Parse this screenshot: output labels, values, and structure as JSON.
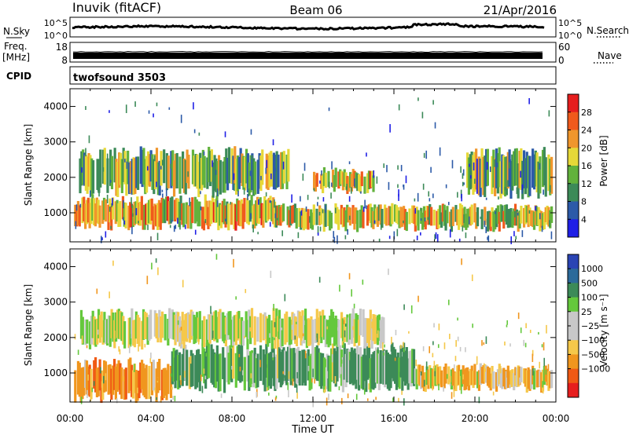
{
  "header": {
    "station": "Inuvik (fitACF)",
    "beam": "Beam 06",
    "date": "21/Apr/2016"
  },
  "strip": {
    "nsky_label": "N.Sky",
    "nsearch_label": "N.Search",
    "left_ticks": [
      "10^5",
      "10^0"
    ],
    "right_ticks": [
      "10^5",
      "10^0"
    ],
    "freq_label": "Freq.",
    "freq_unit": "[MHz]",
    "freq_ticks": [
      "18",
      "8"
    ],
    "nave_label": "Nave",
    "nave_ticks": [
      "60",
      "0"
    ],
    "cpid_label": "CPID",
    "cpid_value": "twofsound 3503"
  },
  "colors": {
    "power": [
      "#1f1fe6",
      "#2c5aa8",
      "#3c8a58",
      "#62b23c",
      "#e6d838",
      "#f0962c",
      "#f05a1c",
      "#e61e1e"
    ],
    "velocity": [
      "#e61e1e",
      "#f05a14",
      "#f0961e",
      "#f5c84a",
      "#c8c8c8",
      "#c8c8c8",
      "#64c83c",
      "#3c8a58",
      "#2c6a9a",
      "#2a44b4"
    ]
  },
  "chart_data": [
    {
      "type": "heatmap",
      "quantity": "Power",
      "ylabel": "Slant Range [km]",
      "xlabel": "Time UT",
      "ylim": [
        180,
        4500
      ],
      "xlim": [
        0,
        24
      ],
      "y_ticks": [
        "1000",
        "2000",
        "3000",
        "4000"
      ],
      "x_ticks": [
        "00:00",
        "04:00",
        "08:00",
        "12:00",
        "16:00",
        "20:00",
        "00:00"
      ],
      "colorbar": {
        "label": "Power [dB]",
        "ticks": [
          "4",
          "8",
          "12",
          "16",
          "20",
          "24",
          "28"
        ]
      },
      "echo_bands_approx": [
        {
          "t_start": 0.2,
          "t_end": 10.2,
          "range_low": 600,
          "range_high": 1400,
          "power_db": 20
        },
        {
          "t_start": 10.2,
          "t_end": 23.8,
          "range_low": 550,
          "range_high": 1200,
          "power_db": 18
        },
        {
          "t_start": 0.3,
          "t_end": 10.8,
          "range_low": 1600,
          "range_high": 2700,
          "power_db": 14
        },
        {
          "t_start": 12.0,
          "t_end": 15.0,
          "range_low": 1600,
          "range_high": 2200,
          "power_db": 20
        },
        {
          "t_start": 19.5,
          "t_end": 23.8,
          "range_low": 1500,
          "range_high": 2700,
          "power_db": 12
        }
      ]
    },
    {
      "type": "heatmap",
      "quantity": "Velocity",
      "ylabel": "Slant Range [km]",
      "xlabel": "Time UT",
      "ylim": [
        180,
        4500
      ],
      "xlim": [
        0,
        24
      ],
      "y_ticks": [
        "1000",
        "2000",
        "3000",
        "4000"
      ],
      "x_ticks": [
        "00:00",
        "04:00",
        "08:00",
        "12:00",
        "16:00",
        "20:00",
        "00:00"
      ],
      "colorbar": {
        "label": "Velocity [m s⁻¹]",
        "ticks": [
          "1000",
          "500",
          "100",
          "25",
          "−25",
          "−100",
          "−500",
          "−1000"
        ]
      },
      "echo_bands_approx": [
        {
          "t_start": 0.2,
          "t_end": 5.0,
          "range_low": 300,
          "range_high": 1300,
          "velocity": -300
        },
        {
          "t_start": 5.0,
          "t_end": 17.0,
          "range_low": 600,
          "range_high": 1700,
          "velocity": 150
        },
        {
          "t_start": 17.0,
          "t_end": 23.8,
          "range_low": 550,
          "range_high": 1200,
          "velocity": -120
        },
        {
          "t_start": 0.5,
          "t_end": 15.5,
          "range_low": 1800,
          "range_high": 2700,
          "velocity": 0
        }
      ]
    }
  ]
}
